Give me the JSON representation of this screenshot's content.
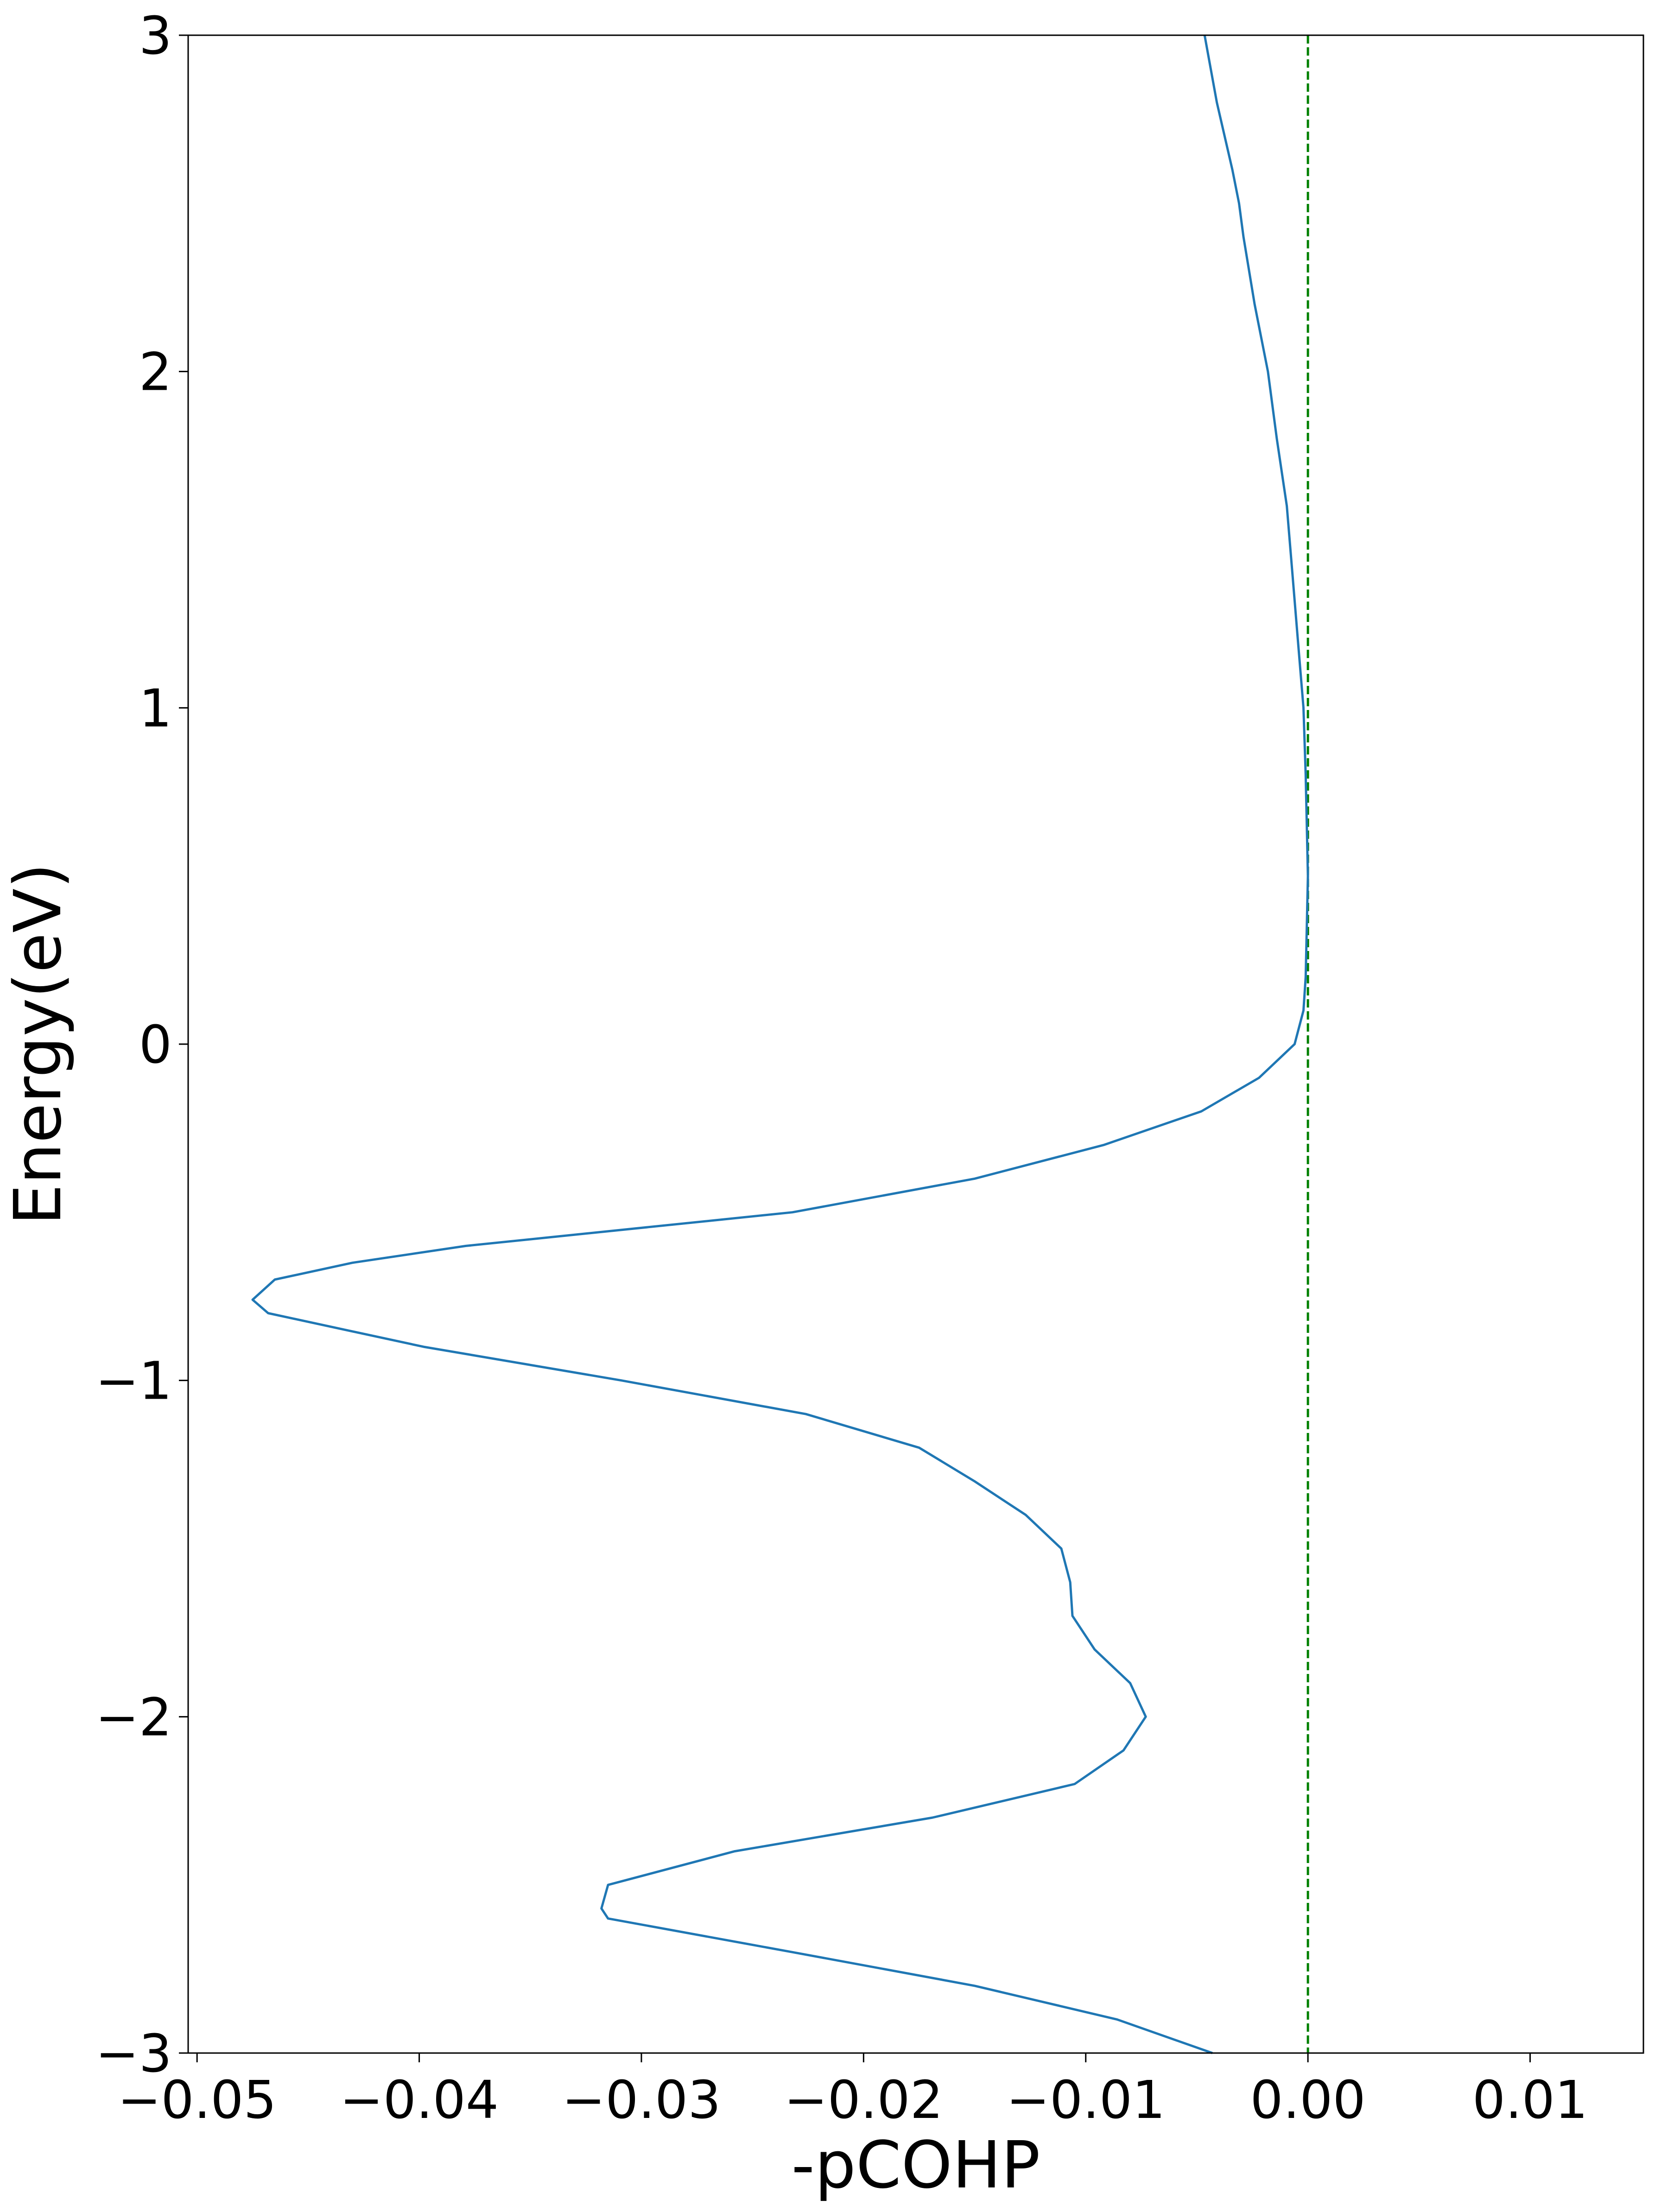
{
  "chart_data": {
    "type": "line",
    "xlabel": "-pCOHP",
    "ylabel": "Energy(eV)",
    "y": [
      3.0,
      2.8,
      2.6,
      2.5,
      2.4,
      2.2,
      2.0,
      1.8,
      1.6,
      1.4,
      1.2,
      1.0,
      0.8,
      0.5,
      0.2,
      0.1,
      0.0,
      -0.1,
      -0.2,
      -0.3,
      -0.4,
      -0.5,
      -0.6,
      -0.65,
      -0.7,
      -0.76,
      -0.8,
      -0.9,
      -1.0,
      -1.1,
      -1.2,
      -1.3,
      -1.4,
      -1.5,
      -1.6,
      -1.7,
      -1.8,
      -1.9,
      -2.0,
      -2.1,
      -2.2,
      -2.3,
      -2.4,
      -2.5,
      -2.57,
      -2.6,
      -2.7,
      -2.8,
      -2.9,
      -3.0
    ],
    "series": [
      {
        "color": "#1f77b4",
        "values": [
          -0.00465,
          -0.0041,
          -0.0034,
          -0.0031,
          -0.0029,
          -0.0024,
          -0.0018,
          -0.0014,
          -0.00095,
          -0.0007,
          -0.00045,
          -0.0002,
          -0.0001,
          0,
          -0.0001,
          -0.0002,
          -0.0006,
          -0.0022,
          -0.0048,
          -0.0092,
          -0.015,
          -0.0232,
          -0.0379,
          -0.043,
          -0.0465,
          -0.0475,
          -0.0468,
          -0.0398,
          -0.0309,
          -0.0226,
          -0.0175,
          -0.015,
          -0.0127,
          -0.0111,
          -0.0107,
          -0.0106,
          -0.0096,
          -0.008,
          -0.0073,
          -0.0083,
          -0.0105,
          -0.0169,
          -0.0258,
          -0.0315,
          -0.0318,
          -0.0315,
          -0.0232,
          -0.015,
          -0.0086,
          -0.0043
        ]
      }
    ],
    "vline": {
      "value": 0,
      "color": "#008000",
      "dashed": true
    },
    "xlim": [
      -0.0504,
      0.0151
    ],
    "xticks": [
      {
        "value": -0.05,
        "label": "−0.05"
      },
      {
        "value": -0.04,
        "label": "−0.04"
      },
      {
        "value": -0.03,
        "label": "−0.03"
      },
      {
        "value": -0.02,
        "label": "−0.02"
      },
      {
        "value": -0.01,
        "label": "−0.01"
      },
      {
        "value": 0,
        "label": "0.00"
      },
      0.01
    ],
    "ylim": [
      -3,
      3
    ],
    "yticks": [
      {
        "value": -3,
        "label": "−3"
      },
      {
        "value": -2,
        "label": "−2"
      },
      {
        "value": -1,
        "label": "−1"
      },
      0,
      1,
      2,
      3
    ],
    "grid": false
  }
}
